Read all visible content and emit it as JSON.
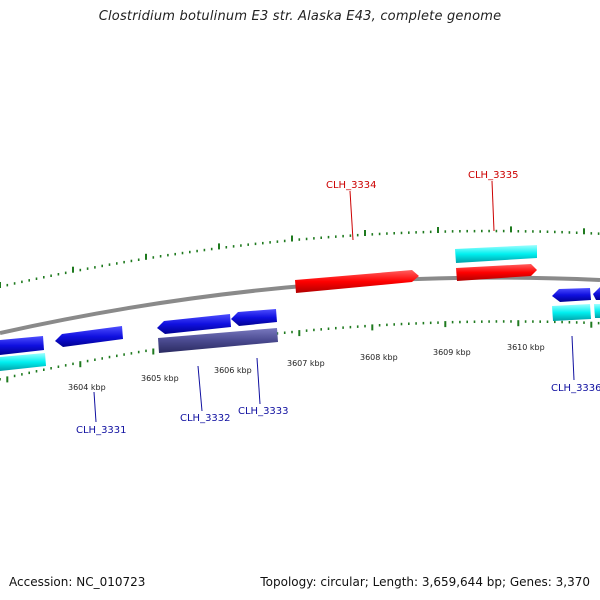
{
  "title": "Clostridium botulinum E3 str. Alaska E43, complete genome",
  "footer": {
    "accession": "Accession: NC_010723",
    "summary": "Topology: circular; Length: 3,659,644 bp; Genes: 3,370"
  },
  "colors": {
    "backbone": "#8a8a8a",
    "ticks": "#1f7a1f",
    "forward_gene": "#ff0000",
    "reverse_gene": "#1010e0",
    "pseudo_gene": "#4a4a90",
    "rna_like": "#00e5e5",
    "label_blue": "#1010a0",
    "label_red": "#cc0000"
  },
  "tick_labels": [
    "3604 kbp",
    "3605 kbp",
    "3606 kbp",
    "3607 kbp",
    "3608 kbp",
    "3609 kbp",
    "3610 kbp"
  ],
  "gene_labels": [
    {
      "name": "CLH_3331",
      "strand": "reverse"
    },
    {
      "name": "CLH_3332",
      "strand": "reverse"
    },
    {
      "name": "CLH_3333",
      "strand": "reverse"
    },
    {
      "name": "CLH_3334",
      "strand": "forward"
    },
    {
      "name": "CLH_3335",
      "strand": "forward"
    },
    {
      "name": "CLH_3336",
      "strand": "reverse"
    }
  ]
}
